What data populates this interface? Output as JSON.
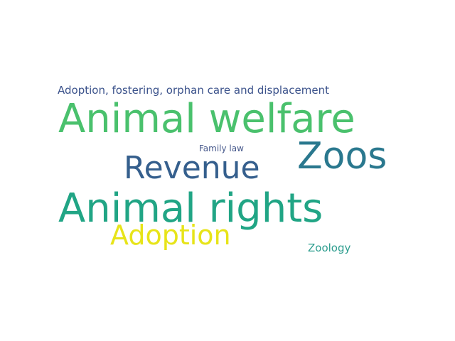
{
  "words": [
    {
      "text": "Adoption, fostering, orphan care and displacement",
      "color": "#3b528b"
    },
    {
      "text": "Animal welfare",
      "color": "#4ac16d"
    },
    {
      "text": "Family law",
      "color": "#46588b"
    },
    {
      "text": "Zoos",
      "color": "#2a788e"
    },
    {
      "text": "Revenue",
      "color": "#355f8d"
    },
    {
      "text": "Animal rights",
      "color": "#21a585"
    },
    {
      "text": "Adoption",
      "color": "#e7e419"
    },
    {
      "text": "Zoology",
      "color": "#2c9d8e"
    }
  ]
}
